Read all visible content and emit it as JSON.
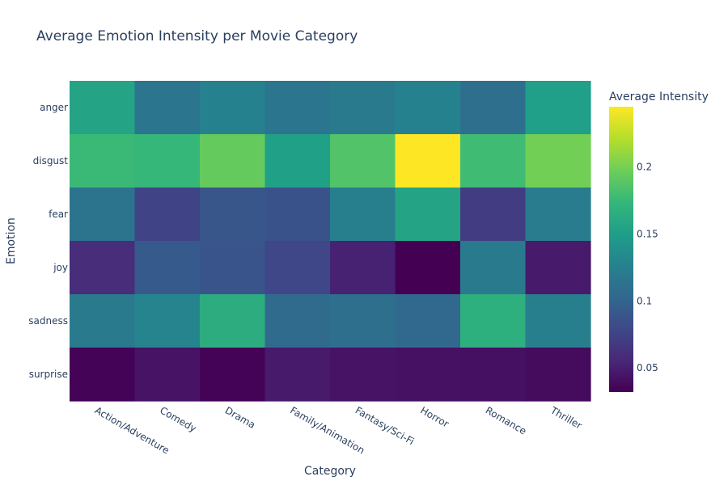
{
  "chart_data": {
    "type": "heatmap",
    "title": "Average Emotion Intensity per Movie Category",
    "xlabel": "Category",
    "ylabel": "Emotion",
    "x": [
      "Action/Adventure",
      "Comedy",
      "Drama",
      "Family/Animation",
      "Fantasy/Sci-Fi",
      "Horror",
      "Romance",
      "Thriller"
    ],
    "y": [
      "anger",
      "disgust",
      "fear",
      "joy",
      "sadness",
      "surprise"
    ],
    "z": [
      [
        0.156,
        0.115,
        0.126,
        0.115,
        0.119,
        0.126,
        0.109,
        0.151
      ],
      [
        0.176,
        0.174,
        0.194,
        0.152,
        0.186,
        0.245,
        0.178,
        0.199
      ],
      [
        0.113,
        0.075,
        0.089,
        0.086,
        0.124,
        0.156,
        0.071,
        0.121
      ],
      [
        0.059,
        0.092,
        0.088,
        0.078,
        0.052,
        0.032,
        0.119,
        0.047
      ],
      [
        0.119,
        0.128,
        0.165,
        0.106,
        0.109,
        0.104,
        0.166,
        0.124
      ],
      [
        0.033,
        0.043,
        0.033,
        0.047,
        0.043,
        0.042,
        0.041,
        0.038
      ]
    ],
    "colorscale": "Viridis",
    "zmin": 0.032,
    "zmax": 0.245,
    "colorbar": {
      "title": "Average Intensity",
      "tickvals": [
        0.05,
        0.1,
        0.15,
        0.2
      ],
      "ticktext": [
        "0.05",
        "0.1",
        "0.15",
        "0.2"
      ]
    },
    "colors": {
      "text": "#2a3f5f",
      "background": "#ffffff"
    }
  }
}
